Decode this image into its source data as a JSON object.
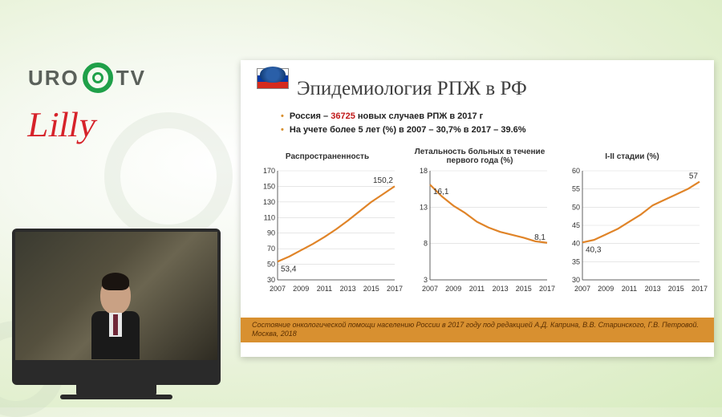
{
  "logos": {
    "uro_left": "URO",
    "uro_right": "TV",
    "lilly": "Lilly"
  },
  "slide": {
    "title": "Эпидемиология РПЖ в РФ",
    "bullet1_pre": "Россия – ",
    "bullet1_red": "36725",
    "bullet1_post": " новых случаев РПЖ в 2017 г",
    "bullet2": "На учете более 5 лет (%) в 2007 – 30,7% в 2017 – 39.6%",
    "citation": "Состояние онкологической помощи населению России в 2017 году под редакцией А.Д. Каприна, В.В. Старинского, Г.В. Петровой. Москва, 2018"
  },
  "colors": {
    "line": "#e08428",
    "axis": "#606060",
    "grid": "#d8d8d8",
    "text": "#303030"
  },
  "x_axis": {
    "years": [
      2007,
      2008,
      2009,
      2010,
      2011,
      2012,
      2013,
      2014,
      2015,
      2016,
      2017
    ],
    "tick_labels": [
      "2007",
      "2009",
      "2011",
      "2013",
      "2015",
      "2017"
    ],
    "tick_idx": [
      0,
      2,
      4,
      6,
      8,
      10
    ]
  },
  "charts": [
    {
      "title": "Распространенность",
      "ymin": 30,
      "ymax": 170,
      "ystep": 20,
      "values": [
        53.4,
        60,
        68,
        76,
        85,
        95,
        106,
        118,
        130,
        140,
        150.2
      ],
      "label_first": "53,4",
      "label_last": "150,2"
    },
    {
      "title": "Летальность больных в течение первого года (%)",
      "ymin": 3,
      "ymax": 18,
      "ystep": 5,
      "values": [
        16.1,
        14.5,
        13.2,
        12.2,
        11.0,
        10.2,
        9.6,
        9.2,
        8.8,
        8.3,
        8.1
      ],
      "label_first": "16,1",
      "label_last": "8,1"
    },
    {
      "title": "I-II стадии  (%)",
      "ymin": 30,
      "ymax": 60,
      "ystep": 5,
      "values": [
        40.3,
        41,
        42.5,
        44,
        46,
        48,
        50.5,
        52,
        53.5,
        55,
        57
      ],
      "label_first": "40,3",
      "label_last": "57"
    }
  ]
}
